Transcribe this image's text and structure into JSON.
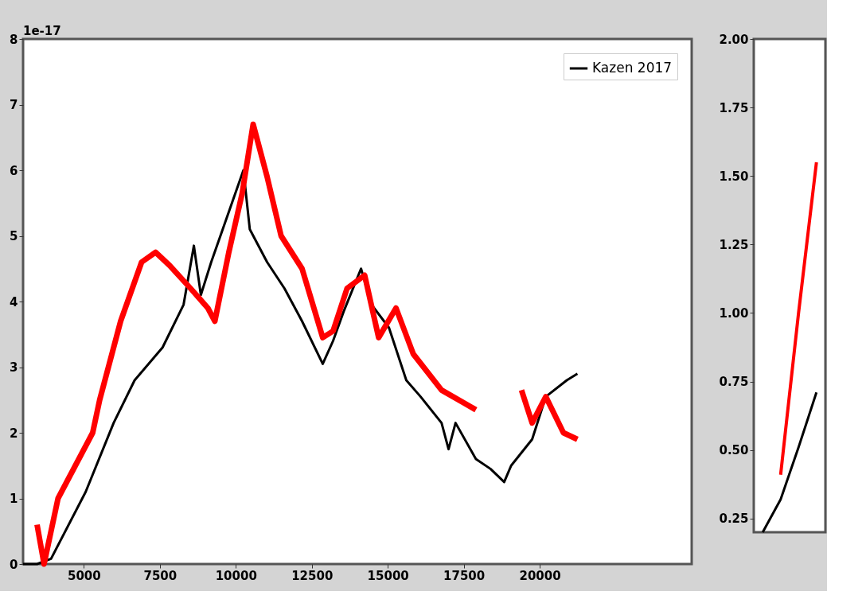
{
  "chart_data": [
    {
      "type": "line",
      "xlim": [
        3000,
        25000
      ],
      "xticks": [
        5000,
        7500,
        10000,
        12500,
        15000,
        17500,
        20000
      ],
      "ylim": [
        0,
        8
      ],
      "yticks": [
        0,
        1,
        2,
        3,
        4,
        5,
        6,
        7,
        8
      ],
      "grid": false,
      "legend": "top right",
      "annotations": [
        "1e-17"
      ],
      "series": [
        {
          "name": "Kazen 2017",
          "color": "#000000",
          "x": [
            3000,
            3460,
            3920,
            5060,
            5980,
            6670,
            7590,
            8280,
            8620,
            8850,
            9190,
            10250,
            10460,
            11030,
            11600,
            12180,
            12860,
            13200,
            13550,
            14120,
            14470,
            15040,
            15610,
            16080,
            16770,
            17000,
            17230,
            17900,
            18380,
            18830,
            19060,
            19750,
            20200,
            20890,
            21240
          ],
          "values": [
            0,
            0,
            0.08,
            1.1,
            2.15,
            2.8,
            3.3,
            3.95,
            4.85,
            4.1,
            4.6,
            6.0,
            5.1,
            4.6,
            4.2,
            3.7,
            3.05,
            3.4,
            3.85,
            4.5,
            3.95,
            3.6,
            2.8,
            2.55,
            2.15,
            1.75,
            2.15,
            1.6,
            1.45,
            1.25,
            1.5,
            1.9,
            2.55,
            2.8,
            2.9
          ]
        },
        {
          "color": "#ff0000",
          "x": [
            3460,
            3690,
            4150,
            5290,
            5520,
            5750,
            6210,
            6900,
            7360,
            7820,
            8510,
            9080,
            9310,
            9770,
            10210,
            10570,
            11030,
            11490,
            12180,
            12860,
            13200,
            13660,
            14240,
            14700,
            15270,
            15840,
            16770,
            17900,
            18600,
            19400,
            19750,
            20200,
            20780,
            21240
          ],
          "values": [
            0.6,
            0,
            1.0,
            2.0,
            2.5,
            2.9,
            3.7,
            4.6,
            4.75,
            4.55,
            4.2,
            3.9,
            3.7,
            4.75,
            5.65,
            6.7,
            5.9,
            5.0,
            4.5,
            3.45,
            3.55,
            4.2,
            4.4,
            3.45,
            3.9,
            3.2,
            2.65,
            2.35,
            null,
            2.65,
            2.15,
            2.55,
            2.0,
            1.9
          ]
        }
      ]
    },
    {
      "type": "line",
      "categories": [
        null,
        null,
        null,
        null
      ],
      "ylim": [
        0.2,
        2.0
      ],
      "yticks": [
        {
          "value": 0.25,
          "label": "0.25"
        },
        {
          "value": 0.5,
          "label": "0.50"
        },
        {
          "value": 0.75,
          "label": "0.75"
        },
        {
          "value": 1.0,
          "label": "1.00"
        },
        {
          "value": 1.25,
          "label": "1.25"
        },
        {
          "value": 1.5,
          "label": "1.50"
        },
        {
          "value": 1.75,
          "label": "1.75"
        },
        {
          "value": 2.0,
          "label": "2.00"
        }
      ],
      "tick_labels": "y",
      "grid": false,
      "series": [
        {
          "color": "#000000",
          "values": [
            0.2,
            0.32,
            0.51,
            0.71
          ]
        },
        {
          "color": "#ff0000",
          "values": [
            null,
            0.41,
            1.0,
            1.55
          ]
        }
      ]
    }
  ]
}
